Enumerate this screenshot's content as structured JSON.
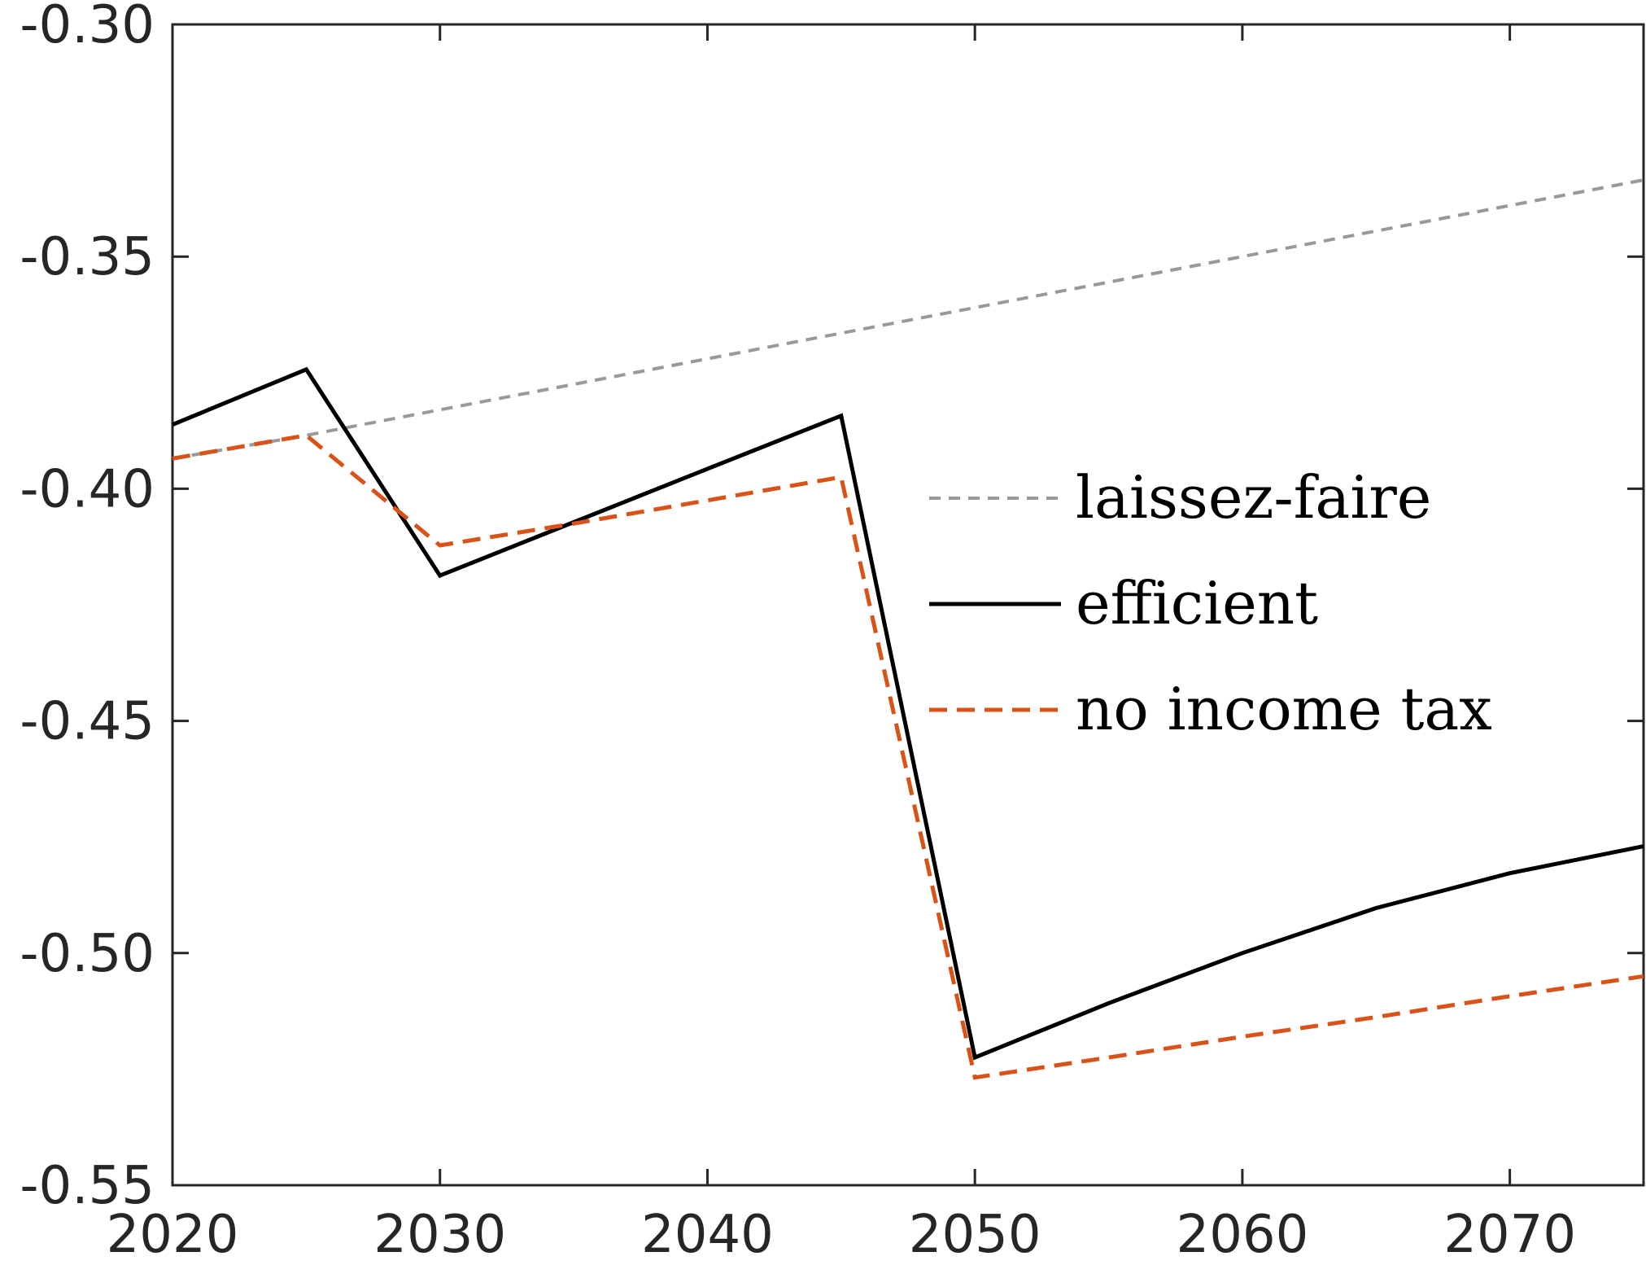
{
  "chart_data": {
    "type": "line",
    "title": "",
    "xlabel": "",
    "ylabel": "",
    "xlim": [
      2020,
      2075
    ],
    "ylim": [
      -0.55,
      -0.3
    ],
    "xticks": [
      2020,
      2030,
      2040,
      2050,
      2060,
      2070
    ],
    "yticks": [
      -0.55,
      -0.5,
      -0.45,
      -0.4,
      -0.35,
      -0.3
    ],
    "xtick_labels": [
      "2020",
      "2030",
      "2040",
      "2050",
      "2060",
      "2070"
    ],
    "ytick_labels": [
      "-0.55",
      "-0.50",
      "-0.45",
      "-0.40",
      "-0.35",
      "-0.30"
    ],
    "grid": false,
    "legend_position": "right",
    "series": [
      {
        "name": "laissez-faire",
        "color": "#999999",
        "line_style": "dashed-fine",
        "x": [
          2020,
          2025,
          2030,
          2035,
          2040,
          2045,
          2050,
          2055,
          2060,
          2065,
          2070,
          2075
        ],
        "y": [
          -0.3935,
          -0.3885,
          -0.383,
          -0.3775,
          -0.372,
          -0.3665,
          -0.361,
          -0.3555,
          -0.35,
          -0.3445,
          -0.339,
          -0.3335
        ]
      },
      {
        "name": "efficient",
        "color": "#000000",
        "line_style": "solid",
        "x": [
          2020,
          2025,
          2030,
          2035,
          2040,
          2045,
          2050,
          2055,
          2060,
          2065,
          2070,
          2075
        ],
        "y": [
          -0.3862,
          -0.3743,
          -0.4187,
          -0.4072,
          -0.3957,
          -0.3843,
          -0.5225,
          -0.5108,
          -0.5,
          -0.4903,
          -0.4828,
          -0.477
        ]
      },
      {
        "name": "no income tax",
        "color": "#D95319",
        "line_style": "dashed",
        "x": [
          2020,
          2025,
          2030,
          2035,
          2040,
          2045,
          2050,
          2055,
          2060,
          2065,
          2070,
          2075
        ],
        "y": [
          -0.3935,
          -0.3885,
          -0.4122,
          -0.4075,
          -0.4025,
          -0.3975,
          -0.5268,
          -0.5225,
          -0.518,
          -0.5138,
          -0.5093,
          -0.505
        ]
      }
    ]
  }
}
